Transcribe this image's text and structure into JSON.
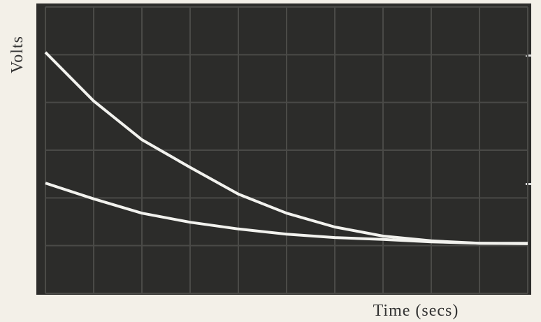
{
  "chart_data": {
    "type": "line",
    "y_label": "Volts",
    "x_label": "Time (secs)",
    "x": [
      0,
      1,
      2,
      3,
      4,
      5,
      6,
      7,
      8,
      9,
      10
    ],
    "series": [
      {
        "color": "#f2f2ee",
        "values": [
          5.05,
          4.03,
          3.22,
          2.64,
          2.08,
          1.68,
          1.39,
          1.2,
          1.1,
          1.05,
          1.05
        ]
      },
      {
        "color": "#f2f2ee",
        "values": [
          2.31,
          1.98,
          1.68,
          1.49,
          1.35,
          1.24,
          1.17,
          1.13,
          1.08,
          1.05,
          1.04
        ]
      }
    ],
    "xlim": [
      0,
      10
    ],
    "ylim": [
      0,
      6
    ]
  }
}
